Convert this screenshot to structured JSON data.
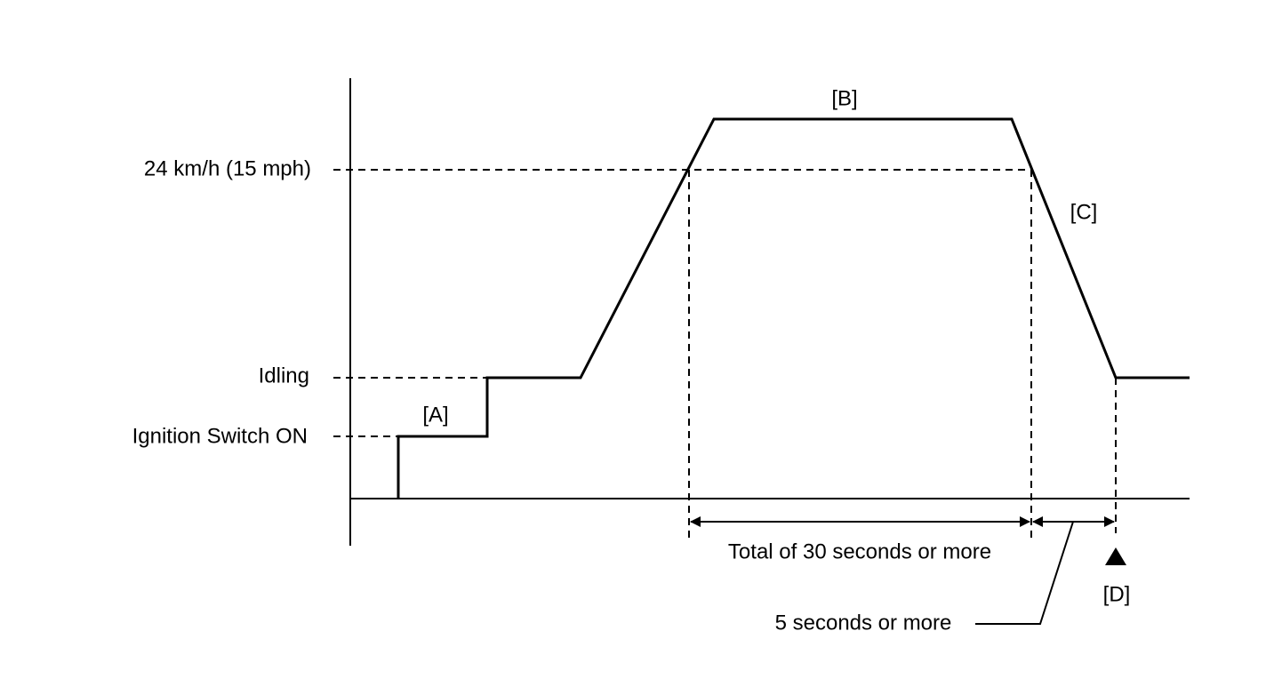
{
  "axis_labels": {
    "speed": "24 km/h (15 mph)",
    "idling": "Idling",
    "ignition": "Ignition Switch ON"
  },
  "phases": {
    "a": "[A]",
    "b": "[B]",
    "c": "[C]",
    "d": "[D]"
  },
  "durations": {
    "total": "Total of 30 seconds or more",
    "decel": "5 seconds or more"
  }
}
